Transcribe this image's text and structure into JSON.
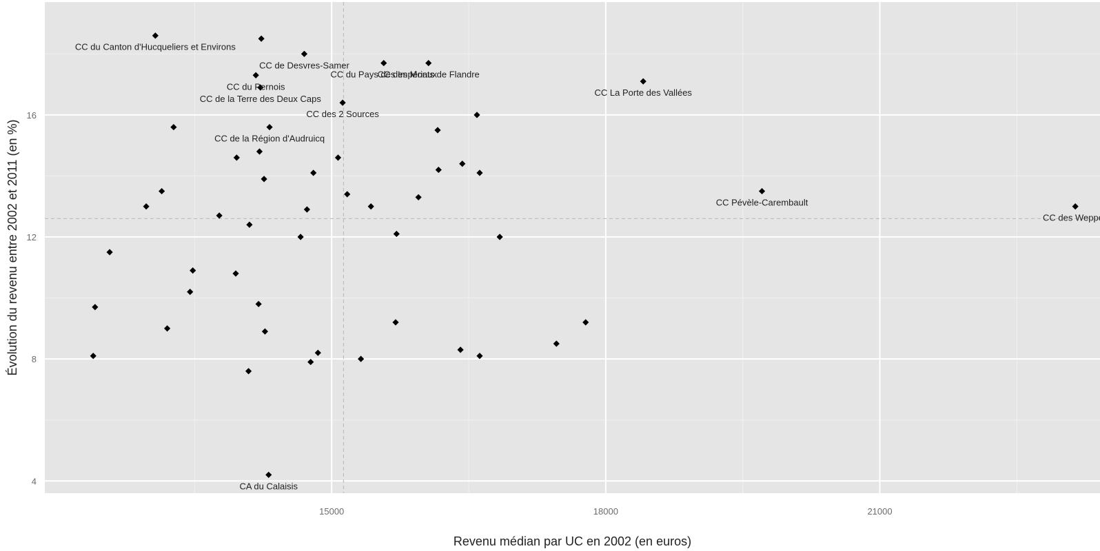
{
  "chart_data": {
    "type": "scatter",
    "title": "",
    "xlabel": "Revenu médian par UC en 2002 (en euros)",
    "ylabel": "Évolution du revenu entre 2002 et 2011 (en %)",
    "xlim": [
      11860,
      23410
    ],
    "ylim": [
      3.6,
      19.7
    ],
    "x_ticks": [
      15000,
      18000,
      21000
    ],
    "y_ticks": [
      4,
      8,
      12,
      16
    ],
    "x_tick_labels": [
      "15000",
      "18000",
      "21000"
    ],
    "y_tick_labels": [
      "4",
      "8",
      "12",
      "16"
    ],
    "grid": true,
    "reference_lines": {
      "x": 15130,
      "y": 12.6
    },
    "colors": {
      "panel": "#e5e5e5",
      "grid_major": "#ffffff",
      "grid_minor": "#f0f0f0",
      "point": "#000000",
      "reference_line": "#bdbdbd"
    },
    "points": [
      {
        "x": 13070,
        "y": 18.6,
        "label": "CC du Canton d'Hucqueliers et Environs"
      },
      {
        "x": 14230,
        "y": 18.5,
        "label": ""
      },
      {
        "x": 14700,
        "y": 18.0,
        "label": "CC de Desvres-Samer"
      },
      {
        "x": 14170,
        "y": 17.3,
        "label": "CC du Pernois"
      },
      {
        "x": 14220,
        "y": 16.9,
        "label": "CC de la Terre des Deux Caps"
      },
      {
        "x": 15120,
        "y": 16.4,
        "label": "CC des 2 Sources"
      },
      {
        "x": 14320,
        "y": 15.6,
        "label": "CC de la Région d'Audruicq"
      },
      {
        "x": 15570,
        "y": 17.7,
        "label": "CC du Pays des Impériaux"
      },
      {
        "x": 16060,
        "y": 17.7,
        "label": "CC des Monts de Flandre"
      },
      {
        "x": 18410,
        "y": 17.1,
        "label": "CC La Porte des Vallées"
      },
      {
        "x": 16590,
        "y": 16.0,
        "label": ""
      },
      {
        "x": 16160,
        "y": 15.5,
        "label": ""
      },
      {
        "x": 13270,
        "y": 15.6,
        "label": ""
      },
      {
        "x": 14210,
        "y": 14.8,
        "label": ""
      },
      {
        "x": 13960,
        "y": 14.6,
        "label": ""
      },
      {
        "x": 15070,
        "y": 14.6,
        "label": ""
      },
      {
        "x": 16430,
        "y": 14.4,
        "label": ""
      },
      {
        "x": 16170,
        "y": 14.2,
        "label": ""
      },
      {
        "x": 16620,
        "y": 14.1,
        "label": ""
      },
      {
        "x": 14800,
        "y": 14.1,
        "label": ""
      },
      {
        "x": 14260,
        "y": 13.9,
        "label": ""
      },
      {
        "x": 13140,
        "y": 13.5,
        "label": ""
      },
      {
        "x": 15170,
        "y": 13.4,
        "label": ""
      },
      {
        "x": 15950,
        "y": 13.3,
        "label": ""
      },
      {
        "x": 12970,
        "y": 13.0,
        "label": ""
      },
      {
        "x": 14730,
        "y": 12.9,
        "label": ""
      },
      {
        "x": 15430,
        "y": 13.0,
        "label": ""
      },
      {
        "x": 13770,
        "y": 12.7,
        "label": ""
      },
      {
        "x": 14100,
        "y": 12.4,
        "label": ""
      },
      {
        "x": 15710,
        "y": 12.1,
        "label": ""
      },
      {
        "x": 14660,
        "y": 12.0,
        "label": ""
      },
      {
        "x": 16840,
        "y": 12.0,
        "label": ""
      },
      {
        "x": 12570,
        "y": 11.5,
        "label": ""
      },
      {
        "x": 13480,
        "y": 10.9,
        "label": ""
      },
      {
        "x": 13950,
        "y": 10.8,
        "label": ""
      },
      {
        "x": 13450,
        "y": 10.2,
        "label": ""
      },
      {
        "x": 14200,
        "y": 9.8,
        "label": ""
      },
      {
        "x": 12410,
        "y": 9.7,
        "label": ""
      },
      {
        "x": 13200,
        "y": 9.0,
        "label": ""
      },
      {
        "x": 14270,
        "y": 8.9,
        "label": ""
      },
      {
        "x": 15700,
        "y": 9.2,
        "label": ""
      },
      {
        "x": 17780,
        "y": 9.2,
        "label": ""
      },
      {
        "x": 17460,
        "y": 8.5,
        "label": ""
      },
      {
        "x": 16410,
        "y": 8.3,
        "label": ""
      },
      {
        "x": 14850,
        "y": 8.2,
        "label": ""
      },
      {
        "x": 16620,
        "y": 8.1,
        "label": ""
      },
      {
        "x": 12390,
        "y": 8.1,
        "label": ""
      },
      {
        "x": 15320,
        "y": 8.0,
        "label": ""
      },
      {
        "x": 14770,
        "y": 7.9,
        "label": ""
      },
      {
        "x": 14090,
        "y": 7.6,
        "label": ""
      },
      {
        "x": 19710,
        "y": 13.5,
        "label": "CC Pévèle-Carembault"
      },
      {
        "x": 23140,
        "y": 13.0,
        "label": "CC des Weppes"
      },
      {
        "x": 14310,
        "y": 4.2,
        "label": "CA du Calaisis"
      }
    ]
  }
}
